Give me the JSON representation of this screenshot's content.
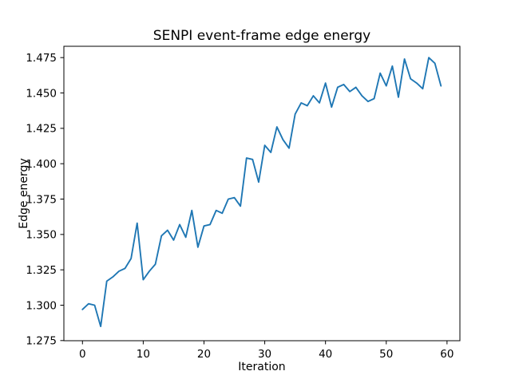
{
  "figure": {
    "background": "#ffffff"
  },
  "chart_data": {
    "type": "line",
    "title": "SENPI event-frame edge energy",
    "xlabel": "Iteration",
    "ylabel": "Edge energy",
    "series_color": "#1f77b4",
    "grid": false,
    "x": [
      0,
      1,
      2,
      3,
      4,
      5,
      6,
      7,
      8,
      9,
      10,
      11,
      12,
      13,
      14,
      15,
      16,
      17,
      18,
      19,
      20,
      21,
      22,
      23,
      24,
      25,
      26,
      27,
      28,
      29,
      30,
      31,
      32,
      33,
      34,
      35,
      36,
      37,
      38,
      39,
      40,
      41,
      42,
      43,
      44,
      45,
      46,
      47,
      48,
      49,
      50,
      51,
      52,
      53,
      54,
      55,
      56,
      57,
      58,
      59
    ],
    "values": [
      1.297,
      1.301,
      1.3,
      1.285,
      1.317,
      1.32,
      1.324,
      1.326,
      1.333,
      1.358,
      1.318,
      1.324,
      1.329,
      1.349,
      1.353,
      1.346,
      1.357,
      1.348,
      1.367,
      1.341,
      1.356,
      1.357,
      1.367,
      1.365,
      1.375,
      1.376,
      1.37,
      1.404,
      1.403,
      1.387,
      1.413,
      1.408,
      1.426,
      1.417,
      1.411,
      1.435,
      1.443,
      1.441,
      1.448,
      1.443,
      1.457,
      1.44,
      1.454,
      1.456,
      1.451,
      1.454,
      1.448,
      1.444,
      1.446,
      1.464,
      1.455,
      1.469,
      1.447,
      1.474,
      1.46,
      1.457,
      1.453,
      1.475,
      1.471,
      1.455
    ],
    "xlim": [
      -3.06,
      62.12
    ],
    "ylim": [
      1.2749,
      1.483
    ],
    "xticks": [
      0,
      10,
      20,
      30,
      40,
      50,
      60
    ],
    "xtick_labels": [
      "0",
      "10",
      "20",
      "30",
      "40",
      "50",
      "60"
    ],
    "yticks": [
      1.275,
      1.3,
      1.325,
      1.35,
      1.375,
      1.4,
      1.425,
      1.45,
      1.475
    ],
    "ytick_labels": [
      "1.275",
      "1.300",
      "1.325",
      "1.350",
      "1.375",
      "1.400",
      "1.425",
      "1.450",
      "1.475"
    ]
  }
}
